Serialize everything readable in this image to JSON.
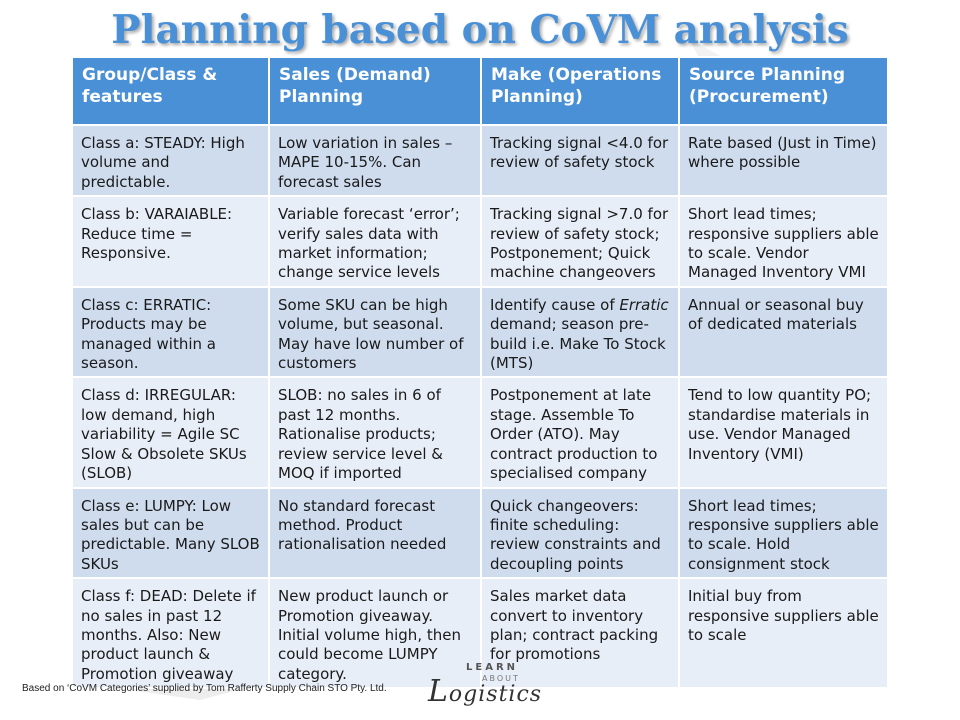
{
  "title": "Planning based on CoVM analysis",
  "headers": [
    "Group/Class & features",
    "Sales (Demand) Planning",
    "Make (Operations Planning)",
    "Source Planning (Procurement)"
  ],
  "rows": [
    [
      "Class a: STEADY: High volume and predictable.",
      "Low variation in sales – MAPE 10-15%. Can forecast sales",
      "Tracking signal <4.0 for review of safety stock",
      "Rate based (Just in Time) where possible"
    ],
    [
      "Class b: VARAIABLE: Reduce time = Responsive.",
      "Variable forecast ‘error’; verify sales data with market information; change service levels",
      "Tracking signal >7.0 for review of safety stock; Postponement; Quick machine changeovers",
      "Short lead times; responsive suppliers able to scale. Vendor Managed Inventory VMI"
    ],
    [
      "Class c: ERRATIC: Products may be managed within a season.",
      "Some SKU can be high volume, but seasonal. May have low number of customers",
      "Identify cause of Erratic demand; season pre-build i.e. Make To Stock (MTS)",
      "Annual or seasonal buy of dedicated materials"
    ],
    [
      "Class d: IRREGULAR: low demand, high variability = Agile SC Slow & Obsolete SKUs (SLOB)",
      "SLOB: no sales in 6 of past 12 months. Rationalise products; review service level & MOQ if imported",
      "Postponement at late stage. Assemble To Order (ATO). May contract production to specialised company",
      "Tend to low quantity PO; standardise materials in use. Vendor Managed Inventory (VMI)"
    ],
    [
      "Class e: LUMPY: Low sales but can be predictable. Many SLOB SKUs",
      "No standard forecast method. Product rationalisation needed",
      "Quick changeovers: finite scheduling: review constraints and decoupling points",
      "Short lead times; responsive suppliers able to scale. Hold consignment stock"
    ],
    [
      "Class f: DEAD: Delete if no sales in past 12 months. Also: New product launch & Promotion giveaway",
      "New product launch or Promotion giveaway. Initial volume high, then could become LUMPY category.",
      "Sales market data convert to inventory plan; contract packing for promotions",
      "Initial buy from responsive suppliers able to scale"
    ]
  ],
  "footer": "Based on ‘CoVM Categories’ supplied by Tom Rafferty Supply Chain STO Pty. Ltd.",
  "logo": {
    "top": "LEARN",
    "middle": "ABOUT",
    "main_initial": "L",
    "main_rest": "ogistics"
  },
  "colors": {
    "accent": "#4a90d6",
    "row_odd": "#cfdcee",
    "row_even": "#e8eef7"
  }
}
